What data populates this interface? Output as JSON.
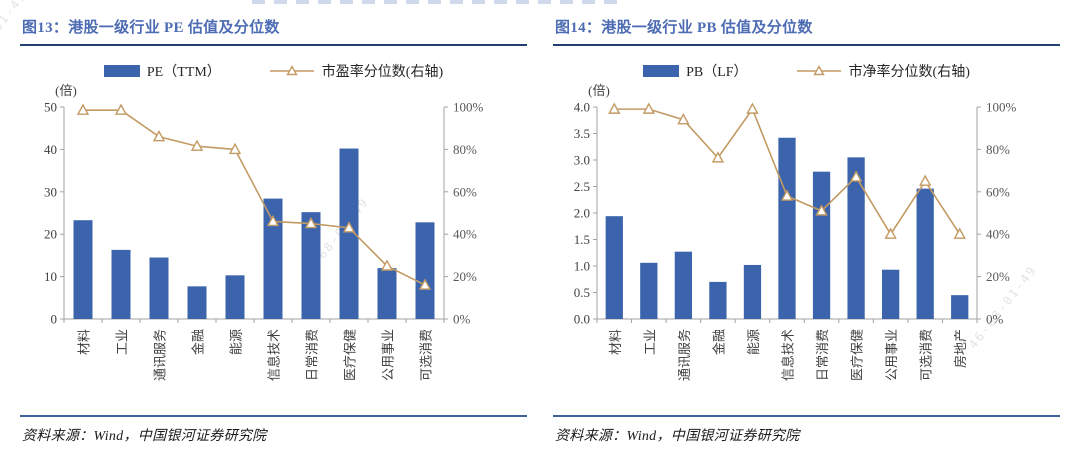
{
  "figure": {
    "watermark_text": "46-68-01-49",
    "colors": {
      "bar": "#3b64ad",
      "line": "#c39a63",
      "title": "#4d6cb3",
      "title_rule": "#23406f",
      "bottom_rule": "#40619c",
      "axis": "#a3a3a3",
      "left_tick_label": "#404040",
      "right_tick_label": "#595959",
      "category_label": "#404040"
    }
  },
  "chart_data": [
    {
      "type": "bar+line",
      "title": "图13：港股一级行业 PE 估值及分位数",
      "source": "资料来源：Wind，中国银河证券研究院",
      "categories": [
        "材料",
        "工业",
        "通讯服务",
        "金融",
        "能源",
        "信息技术",
        "日常消费",
        "医疗保健",
        "公用事业",
        "可选消费"
      ],
      "series": [
        {
          "name": "PE（TTM）",
          "type": "bar",
          "axis": "left",
          "values": [
            23.3,
            16.3,
            14.5,
            7.7,
            10.3,
            28.4,
            25.2,
            40.2,
            12.0,
            22.8
          ]
        },
        {
          "name": "市盈率分位数(右轴)",
          "type": "line",
          "axis": "right",
          "values": [
            98.5,
            98.5,
            86,
            81.5,
            80,
            46,
            45,
            43,
            25,
            16
          ]
        }
      ],
      "left_axis": {
        "label": "(倍)",
        "max": 50,
        "ticks": [
          "0",
          "10",
          "20",
          "30",
          "40",
          "50"
        ]
      },
      "right_axis": {
        "max": 100,
        "ticks": [
          "0%",
          "20%",
          "40%",
          "60%",
          "80%",
          "100%"
        ]
      },
      "legend_position": "top",
      "grid": false
    },
    {
      "type": "bar+line",
      "title": "图14：港股一级行业 PB 估值及分位数",
      "source": "资料来源：Wind，中国银河证券研究院",
      "categories": [
        "材料",
        "工业",
        "通讯服务",
        "金融",
        "能源",
        "信息技术",
        "日常消费",
        "医疗保健",
        "公用事业",
        "可选消费",
        "房地产"
      ],
      "series": [
        {
          "name": "PB（LF）",
          "type": "bar",
          "axis": "left",
          "values": [
            1.94,
            1.06,
            1.27,
            0.7,
            1.02,
            3.42,
            2.78,
            3.05,
            0.93,
            2.46,
            0.45
          ]
        },
        {
          "name": "市净率分位数(右轴)",
          "type": "line",
          "axis": "right",
          "values": [
            99,
            99,
            94,
            76,
            99,
            58,
            51,
            67,
            40,
            65,
            40
          ]
        }
      ],
      "left_axis": {
        "label": "(倍)",
        "max": 4,
        "ticks": [
          "0.0",
          "0.5",
          "1.0",
          "1.5",
          "2.0",
          "2.5",
          "3.0",
          "3.5",
          "4.0"
        ]
      },
      "right_axis": {
        "max": 100,
        "ticks": [
          "0%",
          "20%",
          "40%",
          "60%",
          "80%",
          "100%"
        ]
      },
      "legend_position": "top",
      "grid": false
    }
  ]
}
